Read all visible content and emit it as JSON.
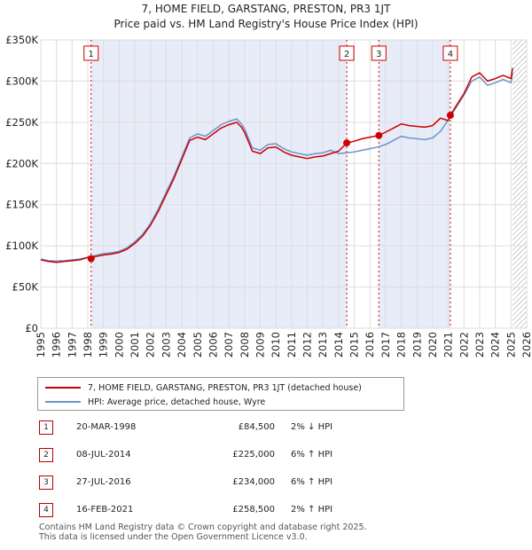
{
  "title_line1": "7, HOME FIELD, GARSTANG, PRESTON, PR3 1JT",
  "title_line2": "Price paid vs. HM Land Registry's House Price Index (HPI)",
  "chart_data": {
    "type": "line",
    "xlim": [
      1995,
      2026
    ],
    "ylim": [
      0,
      350000
    ],
    "yticks": [
      0,
      50000,
      100000,
      150000,
      200000,
      250000,
      300000,
      350000
    ],
    "ytick_labels": [
      "£0",
      "£50K",
      "£100K",
      "£150K",
      "£200K",
      "£250K",
      "£300K",
      "£350K"
    ],
    "xticks": [
      1995,
      1996,
      1997,
      1998,
      1999,
      2000,
      2001,
      2002,
      2003,
      2004,
      2005,
      2006,
      2007,
      2008,
      2009,
      2010,
      2011,
      2012,
      2013,
      2014,
      2015,
      2016,
      2017,
      2018,
      2019,
      2020,
      2021,
      2022,
      2023,
      2024,
      2025,
      2026
    ],
    "shaded_ranges": [
      [
        1998.21,
        2014.52
      ],
      [
        2016.57,
        2021.13
      ]
    ],
    "future_hatch_start": 2025.1,
    "series": [
      {
        "name": "7, HOME FIELD, GARSTANG, PRESTON, PR3 1JT (detached house)",
        "color": "#cc0000",
        "x": [
          1995.0,
          1995.5,
          1996.0,
          1996.5,
          1997.0,
          1997.5,
          1998.0,
          1998.21,
          1998.5,
          1999.0,
          1999.5,
          2000.0,
          2000.5,
          2001.0,
          2001.5,
          2002.0,
          2002.5,
          2003.0,
          2003.5,
          2004.0,
          2004.5,
          2005.0,
          2005.5,
          2006.0,
          2006.5,
          2007.0,
          2007.5,
          2007.8,
          2008.0,
          2008.5,
          2009.0,
          2009.5,
          2010.0,
          2010.5,
          2011.0,
          2011.5,
          2012.0,
          2012.5,
          2013.0,
          2013.5,
          2014.0,
          2014.52,
          2015.0,
          2015.5,
          2016.0,
          2016.57,
          2017.0,
          2017.5,
          2018.0,
          2018.5,
          2019.0,
          2019.5,
          2020.0,
          2020.5,
          2021.0,
          2021.13,
          2021.5,
          2022.0,
          2022.5,
          2023.0,
          2023.5,
          2024.0,
          2024.5,
          2025.0,
          2025.1
        ],
        "values": [
          83000,
          81000,
          80000,
          81000,
          82000,
          83000,
          86000,
          84500,
          87000,
          89000,
          90000,
          92000,
          96000,
          103000,
          112000,
          125000,
          142000,
          162000,
          182000,
          205000,
          228000,
          232000,
          229000,
          236000,
          243000,
          247000,
          250000,
          244000,
          238000,
          215000,
          212000,
          219000,
          220000,
          214000,
          210000,
          208000,
          206000,
          208000,
          209000,
          212000,
          215000,
          225000,
          227000,
          230000,
          232000,
          234000,
          238000,
          243000,
          248000,
          246000,
          245000,
          244000,
          246000,
          255000,
          252000,
          258500,
          270000,
          285000,
          305000,
          310000,
          300000,
          303000,
          307000,
          303000,
          316000
        ]
      },
      {
        "name": "HPI: Average price, detached house, Wyre",
        "color": "#6a95c8",
        "x": [
          1995.0,
          1995.5,
          1996.0,
          1996.5,
          1997.0,
          1997.5,
          1998.0,
          1998.5,
          1999.0,
          1999.5,
          2000.0,
          2000.5,
          2001.0,
          2001.5,
          2002.0,
          2002.5,
          2003.0,
          2003.5,
          2004.0,
          2004.5,
          2005.0,
          2005.5,
          2006.0,
          2006.5,
          2007.0,
          2007.5,
          2007.8,
          2008.0,
          2008.5,
          2009.0,
          2009.5,
          2010.0,
          2010.5,
          2011.0,
          2011.5,
          2012.0,
          2012.5,
          2013.0,
          2013.5,
          2014.0,
          2014.5,
          2015.0,
          2015.5,
          2016.0,
          2016.5,
          2017.0,
          2017.5,
          2018.0,
          2018.5,
          2019.0,
          2019.5,
          2020.0,
          2020.5,
          2021.0,
          2021.5,
          2022.0,
          2022.5,
          2023.0,
          2023.5,
          2024.0,
          2024.5,
          2025.0,
          2025.1
        ],
        "values": [
          84000,
          82000,
          81500,
          82000,
          83000,
          84000,
          86000,
          88500,
          90500,
          91500,
          93500,
          97500,
          105000,
          114000,
          127000,
          145000,
          165000,
          185000,
          208000,
          231000,
          236000,
          233000,
          240000,
          247000,
          251000,
          254000,
          248000,
          242000,
          219000,
          216000,
          223000,
          224000,
          218000,
          214000,
          212000,
          210000,
          212000,
          213000,
          216000,
          212000,
          213000,
          214000,
          216000,
          218000,
          220000,
          223000,
          228000,
          233000,
          231000,
          230000,
          229000,
          231000,
          239000,
          253000,
          268000,
          283000,
          300000,
          305000,
          295000,
          298000,
          302000,
          298000,
          310000
        ]
      }
    ],
    "sales": [
      {
        "num": "1",
        "year": 1998.21,
        "price": 84500
      },
      {
        "num": "2",
        "year": 2014.52,
        "price": 225000
      },
      {
        "num": "3",
        "year": 2016.57,
        "price": 234000
      },
      {
        "num": "4",
        "year": 2021.13,
        "price": 258500
      }
    ]
  },
  "legend": {
    "property": "7, HOME FIELD, GARSTANG, PRESTON, PR3 1JT (detached house)",
    "hpi": "HPI: Average price, detached house, Wyre"
  },
  "transactions": [
    {
      "num": "1",
      "date": "20-MAR-1998",
      "price": "£84,500",
      "hpi": "2% ↓ HPI"
    },
    {
      "num": "2",
      "date": "08-JUL-2014",
      "price": "£225,000",
      "hpi": "6% ↑ HPI"
    },
    {
      "num": "3",
      "date": "27-JUL-2016",
      "price": "£234,000",
      "hpi": "6% ↑ HPI"
    },
    {
      "num": "4",
      "date": "16-FEB-2021",
      "price": "£258,500",
      "hpi": "2% ↑ HPI"
    }
  ],
  "footer": {
    "line1": "Contains HM Land Registry data © Crown copyright and database right 2025.",
    "line2": "This data is licensed under the Open Government Licence v3.0."
  },
  "colors": {
    "property": "#cc0000",
    "hpi": "#6a95c8",
    "shade": "#e8ecf8"
  }
}
